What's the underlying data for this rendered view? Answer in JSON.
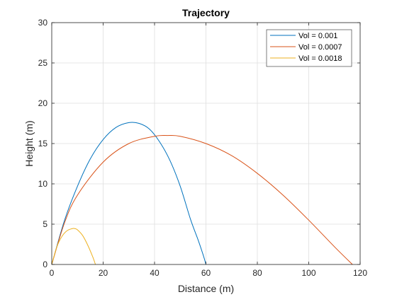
{
  "chart_data": {
    "type": "line",
    "title": "Trajectory",
    "xlabel": "Distance (m)",
    "ylabel": "Height (m)",
    "xlim": [
      0,
      120
    ],
    "ylim": [
      0,
      30
    ],
    "xticks": [
      0,
      20,
      40,
      60,
      80,
      100,
      120
    ],
    "yticks": [
      0,
      5,
      10,
      15,
      20,
      25,
      30
    ],
    "grid": true,
    "legend_position": "top-right",
    "series": [
      {
        "name": "Vol = 0.001",
        "color": "#0072BD",
        "x": [
          0,
          5,
          10,
          15,
          20,
          25,
          30,
          34,
          38,
          42,
          46,
          50,
          54,
          57,
          59,
          60
        ],
        "y": [
          0,
          5.5,
          9.7,
          13.1,
          15.5,
          17.0,
          17.6,
          17.5,
          16.8,
          15.2,
          12.9,
          9.7,
          5.6,
          3.0,
          1.1,
          0
        ]
      },
      {
        "name": "Vol = 0.0007",
        "color": "#D95319",
        "x": [
          0,
          5,
          10,
          20,
          30,
          40,
          45,
          50,
          60,
          70,
          80,
          90,
          100,
          110,
          117
        ],
        "y": [
          0,
          5.2,
          8.6,
          12.7,
          15.0,
          15.9,
          16.0,
          15.9,
          15.0,
          13.5,
          11.3,
          8.6,
          5.5,
          2.2,
          0
        ]
      },
      {
        "name": "Vol = 0.0018",
        "color": "#EDB120",
        "x": [
          0,
          2,
          4,
          6,
          8,
          9,
          10,
          12,
          14,
          16,
          17
        ],
        "y": [
          0,
          2.2,
          3.5,
          4.2,
          4.45,
          4.45,
          4.3,
          3.6,
          2.4,
          0.9,
          0
        ]
      }
    ]
  }
}
